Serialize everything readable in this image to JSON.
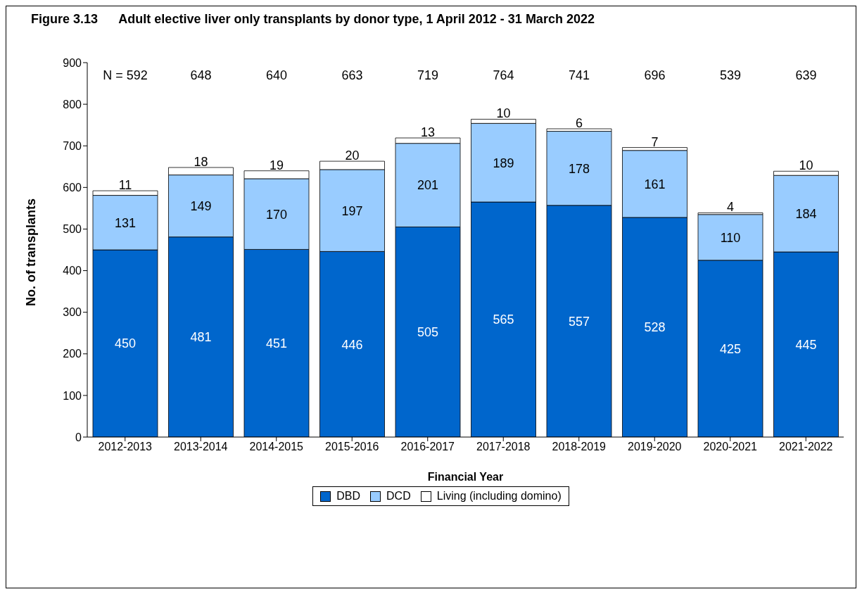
{
  "chart_data": {
    "type": "bar",
    "title": "Figure 3.13      Adult elective liver only transplants by donor type, 1 April 2012 - 31 March 2022",
    "xlabel": "Financial Year",
    "ylabel": "No. of transplants",
    "categories": [
      "2012-2013",
      "2013-2014",
      "2014-2015",
      "2015-2016",
      "2016-2017",
      "2017-2018",
      "2018-2019",
      "2019-2020",
      "2020-2021",
      "2021-2022"
    ],
    "series": [
      {
        "name": "DBD",
        "color": "#0066cc",
        "values": [
          450,
          481,
          451,
          446,
          505,
          565,
          557,
          528,
          425,
          445
        ]
      },
      {
        "name": "DCD",
        "color": "#99ccff",
        "values": [
          131,
          149,
          170,
          197,
          201,
          189,
          178,
          161,
          110,
          184
        ]
      },
      {
        "name": "Living (including domino)",
        "color": "#ffffff",
        "values": [
          11,
          18,
          19,
          20,
          13,
          10,
          6,
          7,
          4,
          10
        ]
      }
    ],
    "stacked": true,
    "data_labels": true,
    "annotations": [
      "N = 592",
      "648",
      "640",
      "663",
      "719",
      "764",
      "741",
      "696",
      "539",
      "639"
    ],
    "ylim": [
      0,
      900
    ],
    "yticks": [
      0,
      100,
      200,
      300,
      400,
      500,
      600,
      700,
      800,
      900
    ],
    "grid": false,
    "legend": "bottom"
  }
}
